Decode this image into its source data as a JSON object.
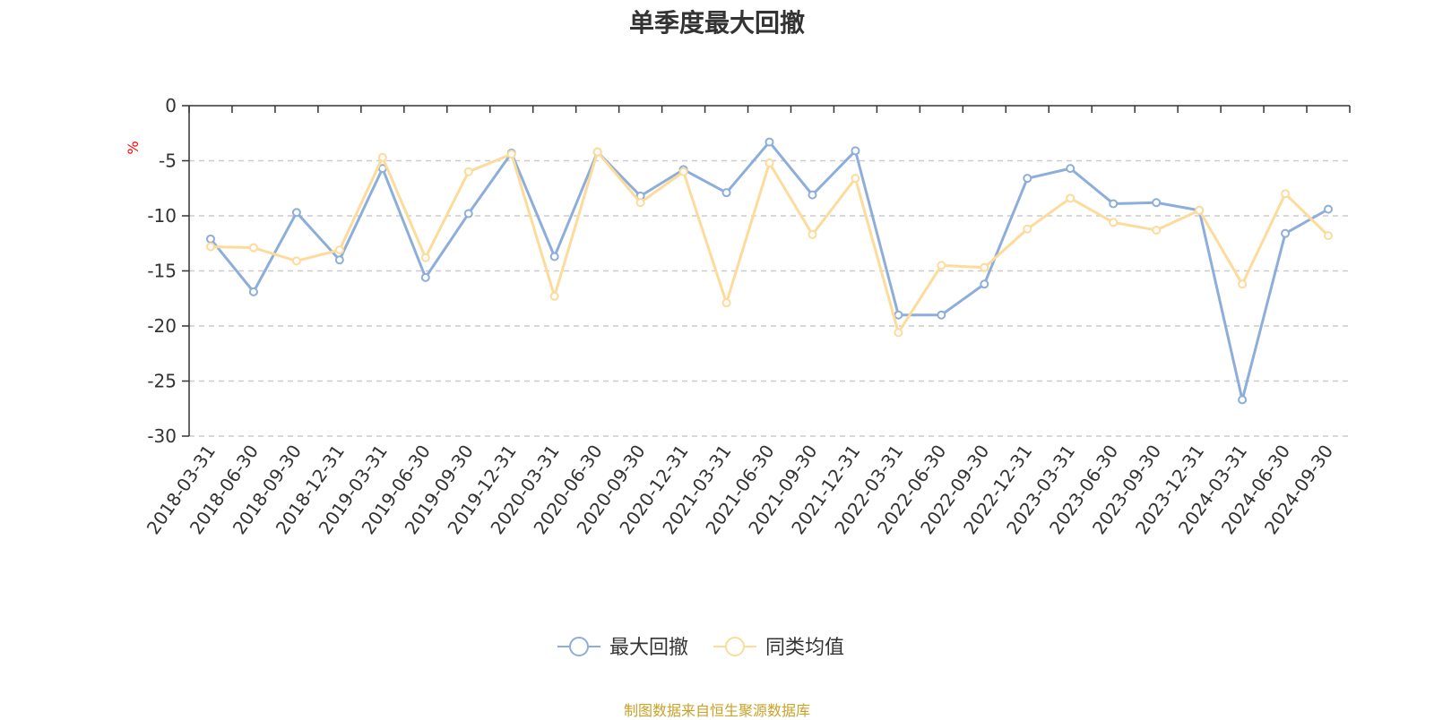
{
  "chart_data": {
    "type": "line",
    "title": "单季度最大回撤",
    "ylabel": "%",
    "ylim": [
      -30,
      0
    ],
    "yticks": [
      0,
      -5,
      -10,
      -15,
      -20,
      -25,
      -30
    ],
    "grid": true,
    "legend_position": "bottom",
    "categories": [
      "2018-03-31",
      "2018-06-30",
      "2018-09-30",
      "2018-12-31",
      "2019-03-31",
      "2019-06-30",
      "2019-09-30",
      "2019-12-31",
      "2020-03-31",
      "2020-06-30",
      "2020-09-30",
      "2020-12-31",
      "2021-03-31",
      "2021-06-30",
      "2021-09-30",
      "2021-12-31",
      "2022-03-31",
      "2022-06-30",
      "2022-09-30",
      "2022-12-31",
      "2023-03-31",
      "2023-06-30",
      "2023-09-30",
      "2023-12-31",
      "2024-03-31",
      "2024-06-30",
      "2024-09-30"
    ],
    "series": [
      {
        "name": "最大回撤",
        "color": "#8daedb",
        "values": [
          -12.1,
          -16.9,
          -9.7,
          -14.0,
          -5.7,
          -15.6,
          -9.8,
          -4.3,
          -13.7,
          -4.2,
          -8.2,
          -5.8,
          -7.9,
          -3.3,
          -8.1,
          -4.1,
          -19.0,
          -19.0,
          -16.2,
          -6.6,
          -5.7,
          -8.9,
          -8.8,
          -9.5,
          -26.7,
          -11.6,
          -9.4
        ]
      },
      {
        "name": "同类均值",
        "color": "#fddb9b",
        "values": [
          -12.8,
          -12.9,
          -14.1,
          -13.1,
          -4.7,
          -13.8,
          -6.0,
          -4.4,
          -17.3,
          -4.2,
          -8.8,
          -6.0,
          -17.9,
          -5.2,
          -11.7,
          -6.6,
          -20.6,
          -14.5,
          -14.7,
          -11.2,
          -8.4,
          -10.6,
          -11.3,
          -9.5,
          -16.2,
          -8.0,
          -11.8
        ]
      }
    ]
  },
  "source_note": "制图数据来自恒生聚源数据库"
}
